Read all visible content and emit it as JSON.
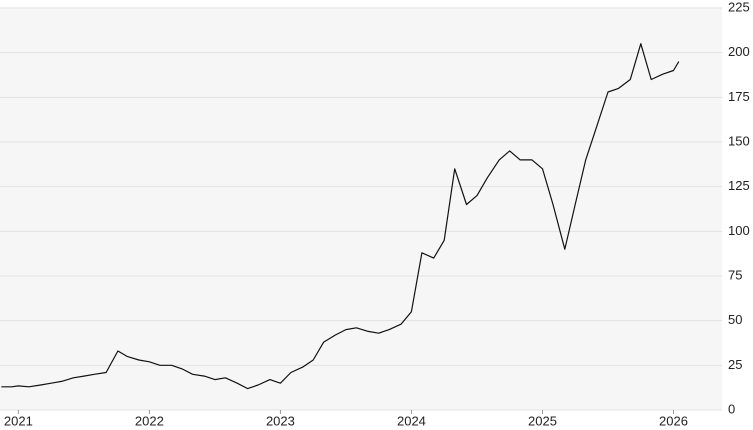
{
  "chart_data": {
    "type": "line",
    "x": [
      2020.87,
      2020.95,
      2021.0,
      2021.08,
      2021.17,
      2021.25,
      2021.33,
      2021.42,
      2021.5,
      2021.58,
      2021.67,
      2021.76,
      2021.83,
      2021.92,
      2022.0,
      2022.08,
      2022.17,
      2022.25,
      2022.33,
      2022.42,
      2022.5,
      2022.58,
      2022.67,
      2022.75,
      2022.83,
      2022.92,
      2023.0,
      2023.08,
      2023.17,
      2023.25,
      2023.33,
      2023.42,
      2023.5,
      2023.58,
      2023.67,
      2023.75,
      2023.83,
      2023.92,
      2024.0,
      2024.08,
      2024.17,
      2024.25,
      2024.33,
      2024.42,
      2024.5,
      2024.58,
      2024.67,
      2024.75,
      2024.83,
      2024.92,
      2025.0,
      2025.08,
      2025.17,
      2025.25,
      2025.33,
      2025.42,
      2025.5,
      2025.58,
      2025.67,
      2025.75,
      2025.83,
      2025.92,
      2026.0,
      2026.04
    ],
    "series": [
      {
        "color": "#111111",
        "values": [
          13,
          13,
          13.5,
          13,
          14,
          15,
          16,
          18,
          19,
          20,
          21,
          33,
          30,
          28,
          27,
          25,
          25,
          23,
          20,
          19,
          17,
          18,
          15,
          12,
          14,
          17,
          15,
          21,
          24,
          28,
          38,
          42,
          45,
          46,
          44,
          43,
          45,
          48,
          55,
          88,
          85,
          95,
          135,
          115,
          120,
          130,
          140,
          145,
          140,
          140,
          135,
          115,
          90,
          115,
          140,
          160,
          178,
          180,
          185,
          205,
          185,
          188,
          190,
          195
        ]
      }
    ],
    "xlim": [
      2020.86,
      2026.37
    ],
    "xticks": [
      2021,
      2022,
      2023,
      2024,
      2025,
      2026
    ],
    "ylim": [
      0,
      225
    ],
    "yticks": [
      0,
      25,
      50,
      75,
      100,
      125,
      150,
      175,
      200,
      225
    ],
    "grid": true
  }
}
